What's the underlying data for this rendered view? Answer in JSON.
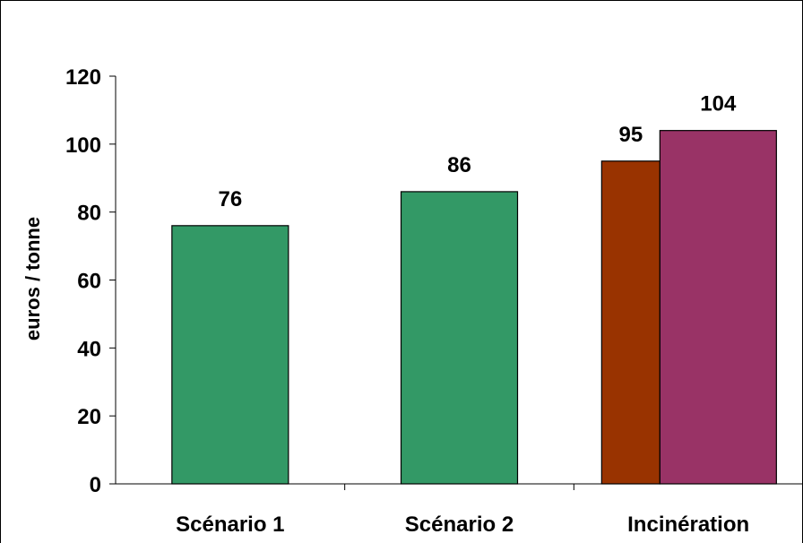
{
  "chart_data": {
    "type": "bar",
    "title": "",
    "xlabel": "",
    "ylabel": "euros / tonne",
    "ylim": [
      0,
      120
    ],
    "yticks": [
      0,
      20,
      40,
      60,
      80,
      100,
      120
    ],
    "grid": false,
    "categories": [
      "Scénario  1",
      "Scénario 2",
      "Incinération"
    ],
    "bars": [
      {
        "category": "Scénario  1",
        "value": 76,
        "label": "76",
        "color": "#339966"
      },
      {
        "category": "Scénario 2",
        "value": 86,
        "label": "86",
        "color": "#339966"
      },
      {
        "category": "Incinération",
        "value": 95,
        "label": "95",
        "color": "#993300"
      },
      {
        "category": "Incinération",
        "value": 104,
        "label": "104",
        "color": "#993366"
      }
    ]
  }
}
